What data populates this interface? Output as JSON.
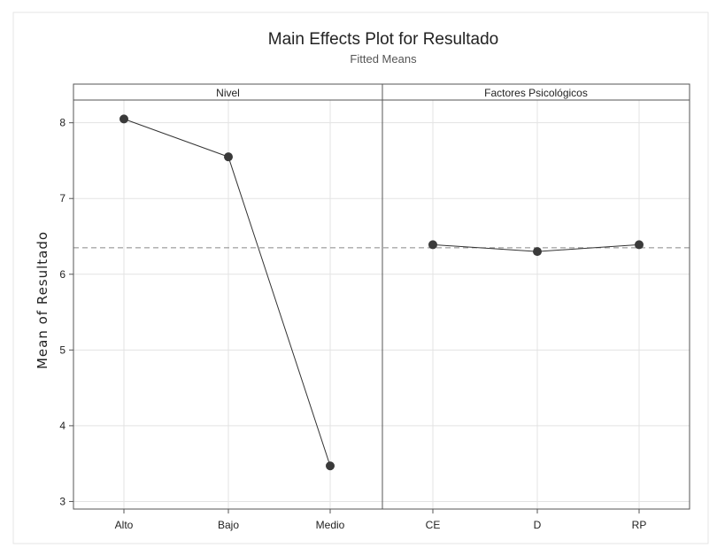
{
  "chart_data": {
    "type": "line",
    "title": "Main Effects Plot for Resultado",
    "subtitle": "Fitted Means",
    "ylabel": "Mean of Resultado",
    "ylim": [
      2.9,
      8.3
    ],
    "yticks": [
      3,
      4,
      5,
      6,
      7,
      8
    ],
    "reference_line": 6.35,
    "grid": true,
    "panels": [
      {
        "name": "Nivel",
        "categories": [
          "Alto",
          "Bajo",
          "Medio"
        ],
        "values": [
          8.05,
          7.55,
          3.47
        ]
      },
      {
        "name": "Factores Psicológicos",
        "categories": [
          "CE",
          "D",
          "RP"
        ],
        "values": [
          6.39,
          6.3,
          6.39
        ]
      }
    ]
  },
  "colors": {
    "line": "#333333",
    "marker": "#3a3a3a",
    "reference": "#888888",
    "grid": "#e3e3e3",
    "axis": "#555555"
  }
}
